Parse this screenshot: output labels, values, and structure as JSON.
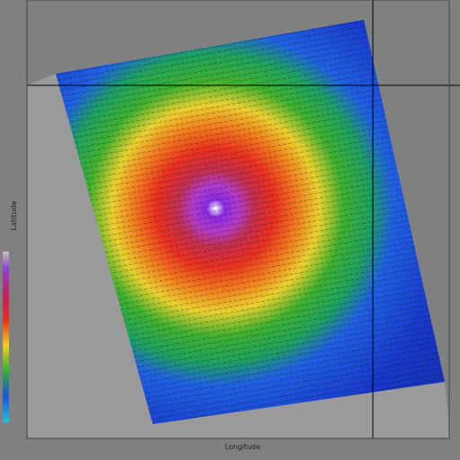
{
  "map": {
    "x_axis_label": "Longitude",
    "y_axis_label": "Latitude"
  }
}
